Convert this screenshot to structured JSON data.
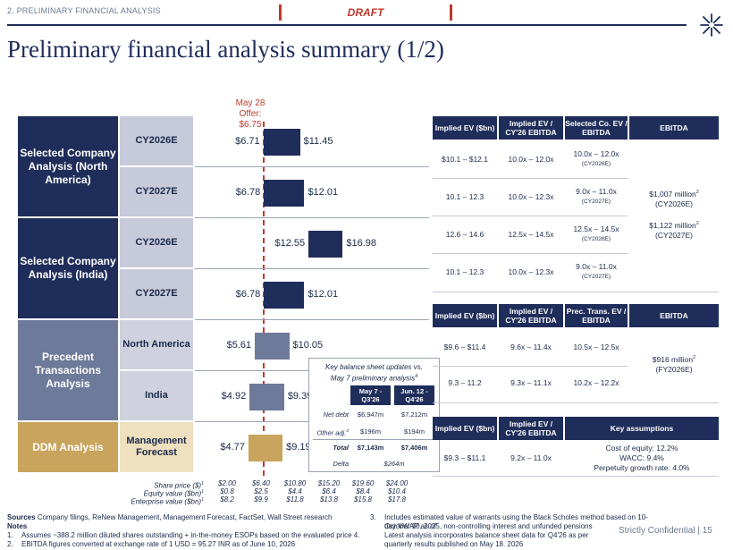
{
  "header": {
    "section": "2. PRELIMINARY FINANCIAL ANALYSIS",
    "draft": "DRAFT",
    "title": "Preliminary financial analysis summary (1/2)"
  },
  "offer": {
    "line1": "May 28 Offer:",
    "line2": "$6.75",
    "value": 6.75
  },
  "axis": {
    "min": 2.0,
    "max": 24.0
  },
  "categories": {
    "na": "Selected Company Analysis (North America)",
    "india": "Selected Company Analysis (India)",
    "pta": "Precedent Transactions Analysis",
    "ddm": "DDM Analysis"
  },
  "rows": [
    {
      "label": "CY2026E",
      "low": 6.71,
      "high": 11.45,
      "low_label": "$6.71",
      "high_label": "$11.45"
    },
    {
      "label": "CY2027E",
      "low": 6.78,
      "high": 12.01,
      "low_label": "$6.78",
      "high_label": "$12.01"
    },
    {
      "label": "CY2026E",
      "low": 12.55,
      "high": 16.98,
      "low_label": "$12.55",
      "high_label": "$16.98"
    },
    {
      "label": "CY2027E",
      "low": 6.78,
      "high": 12.01,
      "low_label": "$6.78",
      "high_label": "$12.01"
    },
    {
      "label": "North America",
      "low": 5.61,
      "high": 10.05,
      "low_label": "$5.61",
      "high_label": "$10.05"
    },
    {
      "label": "India",
      "low": 4.92,
      "high": 9.39,
      "low_label": "$4.92",
      "high_label": "$9.39"
    },
    {
      "label": "Management Forecast",
      "low": 4.77,
      "high": 9.19,
      "low_label": "$4.77",
      "high_label": "$9.19"
    }
  ],
  "axis_rows": {
    "share_label": "Share price ($)",
    "equity_label": "Equity value ($bn)",
    "ev_label": "Enterprise value ($bn)",
    "sup": "1",
    "share": [
      "$2.00",
      "$6.40",
      "$10.80",
      "$15.20",
      "$19.60",
      "$24.00"
    ],
    "equity": [
      "$0.8",
      "$2.5",
      "$4.4",
      "$6.4",
      "$8.4",
      "$10.4"
    ],
    "ev": [
      "$8.2",
      "$9.9",
      "$11.8",
      "$13.8",
      "$15.8",
      "$17.8"
    ]
  },
  "key_box": {
    "title1": "Key balance sheet updates vs.",
    "title2": "May 7 preliminary analysis",
    "title_sup": "4",
    "col1": "May 7 - Q3'26",
    "col2": "Jun. 12 - Q4'26",
    "rows": [
      {
        "label": "Net debt",
        "a": "$6,947m",
        "b": "$7,212m"
      },
      {
        "label": "Other adj.",
        "sup": "3",
        "a": "$196m",
        "b": "$194m"
      },
      {
        "label": "Total",
        "a": "$7,143m",
        "b": "$7,406m"
      }
    ],
    "delta_label": "Delta",
    "delta_value": "$264m"
  },
  "table1": {
    "headers": [
      "Implied EV ($bn)",
      "Implied EV / CY'26 EBITDA",
      "Selected Co. EV / EBITDA",
      "EBITDA"
    ],
    "rows": [
      {
        "ev": "$10.1 – $12.1",
        "mult": "10.0x – 12.0x",
        "sel": "10.0x – 12.0x",
        "sel_sub": "(CY2026E)"
      },
      {
        "ev": "10.1 – 12.3",
        "mult": "10.0x – 12.3x",
        "sel": "9.0x – 11.0x",
        "sel_sub": "(CY2027E)"
      },
      {
        "ev": "12.6 – 14.6",
        "mult": "12.5x – 14.5x",
        "sel": "12.5x – 14.5x",
        "sel_sub": "(CY2026E)"
      },
      {
        "ev": "10.1 – 12.3",
        "mult": "10.0x – 12.3x",
        "sel": "9.0x – 11.0x",
        "sel_sub": "(CY2027E)"
      }
    ],
    "ebitda1": "$1,007 million",
    "ebitda1_sub": "(CY2026E)",
    "ebitda2": "$1,122 million",
    "ebitda2_sub": "(CY2027E)",
    "sup": "2"
  },
  "table2": {
    "headers": [
      "Implied EV ($bn)",
      "Implied EV / CY'26 EBITDA",
      "Prec. Trans. EV / EBITDA",
      "EBITDA"
    ],
    "rows": [
      {
        "ev": "$9.6 – $11.4",
        "mult": "9.6x – 11.4x",
        "prec": "10.5x – 12.5x"
      },
      {
        "ev": "9.3 – 11.2",
        "mult": "9.3x – 11.1x",
        "prec": "10.2x – 12.2x"
      }
    ],
    "ebitda": "$916 million",
    "ebitda_sub": "(FY2026E)",
    "sup": "2"
  },
  "table3": {
    "headers": [
      "Implied EV ($bn)",
      "Implied EV / CY'26 EBITDA",
      "Key assumptions"
    ],
    "ev": "$9.3 – $11.1",
    "mult": "9.2x – 11.0x",
    "assumptions": [
      "Cost of equity: 12.2%",
      "WACC: 9.4%",
      "Perpetuity growth rate: 4.0%"
    ]
  },
  "footer": {
    "sources_label": "Sources",
    "sources": "Company filings, ReNew Management, Management Forecast, FactSet, Wall Street research",
    "notes_label": "Notes",
    "n1_num": "1.",
    "n1": "Assumes ~388.2 million diluted shares outstanding + in-the-money ESOPs based on the evaluated price 4.",
    "n2_num": "2.",
    "n2": "EBITDA figures converted at exchange rate of 1 USD = 95.27 INR as of June 10, 2026",
    "n3_num": "3.",
    "n3a": "Includes estimated value of warrants using the Black Scholes method based on 10-day VWAP as of",
    "n3b": "October 10, 2025, non-controlling interest and unfunded pensions",
    "n4a": "Latest analysis incorporates balance sheet data for Q4'26 as per",
    "n4b": "quarterly results published on May 18. 2026",
    "confidential": "Strictly Confidential | 15"
  },
  "colors": {
    "navy": "#1f2d5a",
    "lavender": "#c7cadb",
    "slate": "#6e7a99",
    "slate_light": "#cfd2de",
    "gold": "#c9a45c",
    "gold_light": "#efe0c0",
    "red": "#c0392b"
  }
}
